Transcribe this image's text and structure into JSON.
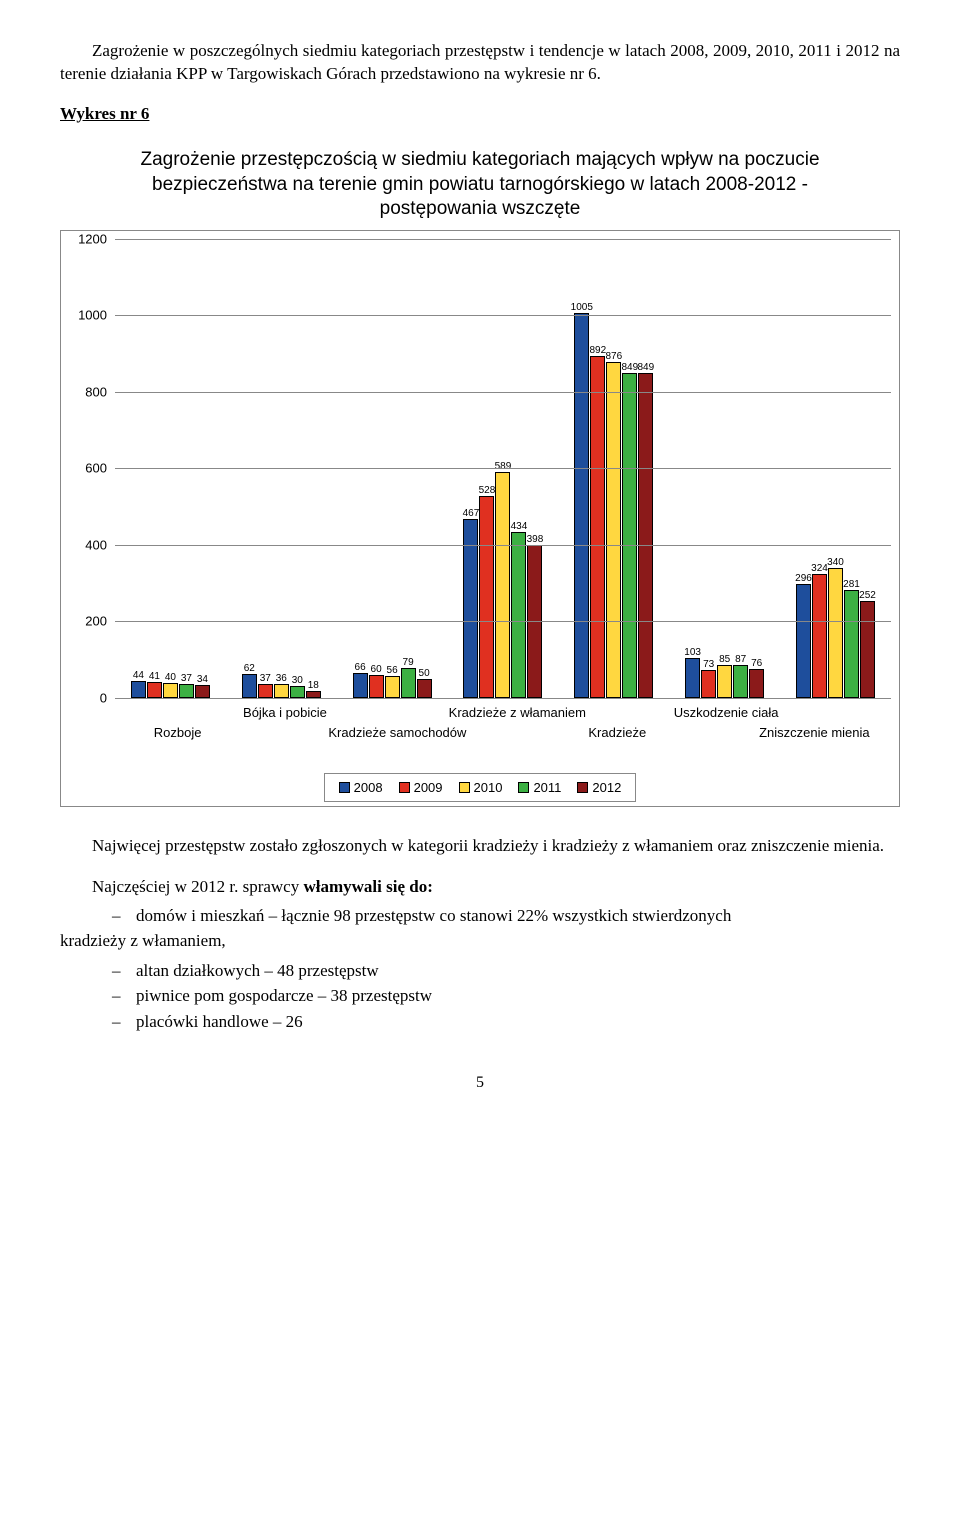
{
  "intro_para": "Zagrożenie w poszczególnych siedmiu kategoriach przestępstw i tendencje w latach 2008, 2009, 2010, 2011 i 2012  na terenie działania KPP w Targowiskach Górach przedstawiono na wykresie nr 6.",
  "wykres_label": "Wykres nr 6",
  "chart": {
    "title": "Zagrożenie przestępczością w siedmiu kategoriach mających wpływ na poczucie bezpieczeństwa na terenie gmin powiatu tarnogórskiego w latach 2008-2012 - postępowania wszczęte",
    "y_max": 1200,
    "y_ticks": [
      0,
      200,
      400,
      600,
      800,
      1000,
      1200
    ],
    "series_colors": [
      "#1e4e9c",
      "#e03020",
      "#ffd740",
      "#3cb043",
      "#8b1a1a"
    ],
    "series_labels": [
      "2008",
      "2009",
      "2010",
      "2011",
      "2012"
    ],
    "categories_row1": [
      "Bójka i pobicie",
      "Kradzieże z włamaniem",
      "Uszkodzenie ciała"
    ],
    "categories_row2": [
      "Rozboje",
      "Kradzieże samochodów",
      "Kradzieże",
      "Zniszczenie mienia"
    ],
    "groups": [
      {
        "values": [
          44,
          41,
          40,
          37,
          34
        ]
      },
      {
        "values": [
          62,
          37,
          36,
          30,
          18
        ]
      },
      {
        "values": [
          66,
          60,
          56,
          79,
          50
        ]
      },
      {
        "values": [
          467,
          528,
          589,
          434,
          398
        ]
      },
      {
        "values": [
          1005,
          892,
          876,
          849,
          849
        ]
      },
      {
        "values": [
          103,
          73,
          85,
          87,
          76
        ]
      },
      {
        "values": [
          296,
          324,
          340,
          281,
          252
        ]
      }
    ]
  },
  "after_chart_para": "Najwięcej przestępstw zostało zgłoszonych w kategorii kradzieży i kradzieży z włamaniem oraz zniszczenie mienia.",
  "list_intro_prefix": "Najczęściej w 2012 r. sprawcy ",
  "list_intro_bold": "włamywali się do:",
  "bullets": [
    "domów i mieszkań – łącznie 98 przestępstw  co stanowi 22% wszystkich stwierdzonych",
    "altan działkowych – 48 przestępstw",
    "piwnice pom gospodarcze – 38 przestępstw",
    "placówki handlowe – 26"
  ],
  "bullet0_suffix_unindented": "kradzieży z włamaniem,",
  "page_number": "5"
}
